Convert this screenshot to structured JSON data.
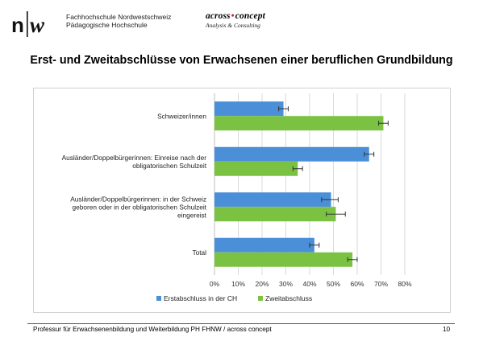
{
  "header": {
    "logo_text": "n|w",
    "institution_line1": "Fachhochschule Nordwestschweiz",
    "institution_line2": "Pädagogische Hochschule",
    "partner_name_a": "across",
    "partner_name_b": "concept",
    "partner_tagline": "Analysis & Consulting"
  },
  "footer": {
    "text": "Professur für Erwachsenenbildung und Weiterbildung PH FHNW / across concept",
    "page_number": "10"
  },
  "colors": {
    "series_1": "#4a8fd8",
    "series_2": "#7cc242",
    "grid": "#d9d9d9",
    "error_bar": "#333333"
  },
  "chart_data": {
    "type": "bar",
    "orientation": "horizontal",
    "title": "Erst- und Zweitabschlüsse von Erwachsenen einer beruflichen Grundbildung",
    "categories": [
      [
        "Schweizer/innen"
      ],
      [
        "Ausländer/Doppelbürgerinnen: Einreise nach der",
        "obligatorischen Schulzeit"
      ],
      [
        "Ausländer/Doppelbürgerinnen: in der Schweiz",
        "geboren oder in der obligatorischen Schulzeit",
        "eingereist"
      ],
      [
        "Total"
      ]
    ],
    "series": [
      {
        "name": "Erstabschluss in der CH",
        "values": [
          29,
          65,
          49,
          42
        ],
        "error_low": [
          27,
          63,
          45,
          40
        ],
        "error_high": [
          31,
          67,
          52,
          44
        ]
      },
      {
        "name": "Zweitabschluss",
        "values": [
          71,
          35,
          51,
          58
        ],
        "error_low": [
          69,
          33,
          47,
          56
        ],
        "error_high": [
          73,
          37,
          55,
          60
        ]
      }
    ],
    "xlim": [
      0,
      80
    ],
    "x_ticks": [
      "0%",
      "10%",
      "20%",
      "30%",
      "40%",
      "50%",
      "60%",
      "70%",
      "80%"
    ],
    "grid": true,
    "legend_position": "bottom"
  }
}
